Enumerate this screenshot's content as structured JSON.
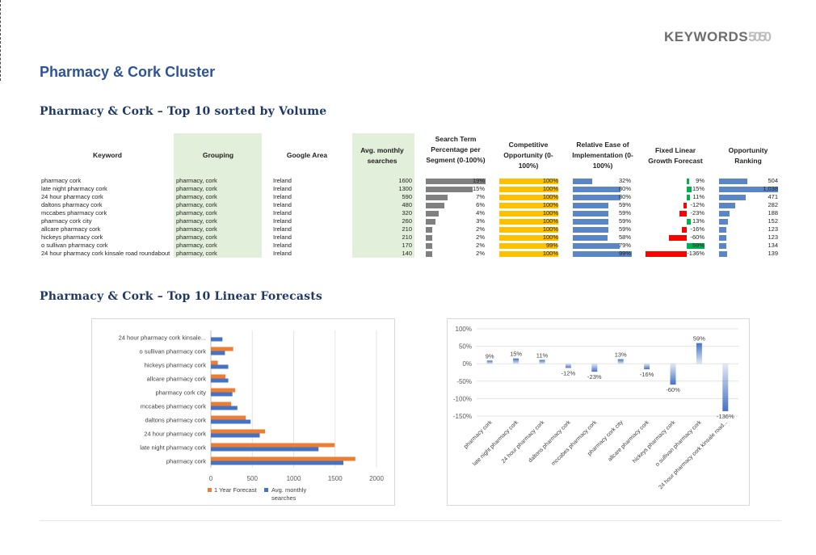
{
  "logo": {
    "text": "KEYWORDS",
    "nums": "5050"
  },
  "title": "Pharmacy & Cork Cluster",
  "section1_title": "Pharmacy & Cork – Top 10 sorted by Volume",
  "section2_title": "Pharmacy & Cork – Top 10 Linear Forecasts",
  "headers": {
    "keyword": "Keyword",
    "grouping": "Grouping",
    "area": "Google Area",
    "volume": "Avg. monthly searches",
    "stp": "Search Term Percentage per Segment (0-100%)",
    "comp": "Competitive Opportunity (0-100%)",
    "ease": "Relative Ease of Implementation (0-100%)",
    "growth": "Fixed Linear Growth Forecast",
    "rank": "Opportunity Ranking"
  },
  "rows": [
    {
      "keyword": "pharmacy cork",
      "grouping": "pharmacy, cork",
      "area": "Ireland",
      "volume": "1600",
      "stp": "19%",
      "stp_v": 19,
      "comp": "100%",
      "comp_v": 100,
      "ease": "32%",
      "ease_v": 32,
      "growth": "9%",
      "growth_v": 9,
      "rank": "504",
      "rank_v": 504
    },
    {
      "keyword": "late night pharmacy cork",
      "grouping": "pharmacy, cork",
      "area": "Ireland",
      "volume": "1300",
      "stp": "15%",
      "stp_v": 15,
      "comp": "100%",
      "comp_v": 100,
      "ease": "80%",
      "ease_v": 80,
      "growth": "15%",
      "growth_v": 15,
      "rank": "1,038",
      "rank_v": 1038
    },
    {
      "keyword": "24 hour pharmacy cork",
      "grouping": "pharmacy, cork",
      "area": "Ireland",
      "volume": "590",
      "stp": "7%",
      "stp_v": 7,
      "comp": "100%",
      "comp_v": 100,
      "ease": "80%",
      "ease_v": 80,
      "growth": "11%",
      "growth_v": 11,
      "rank": "471",
      "rank_v": 471
    },
    {
      "keyword": "daltons pharmacy cork",
      "grouping": "pharmacy, cork",
      "area": "Ireland",
      "volume": "480",
      "stp": "6%",
      "stp_v": 6,
      "comp": "100%",
      "comp_v": 100,
      "ease": "59%",
      "ease_v": 59,
      "growth": "-12%",
      "growth_v": -12,
      "rank": "282",
      "rank_v": 282
    },
    {
      "keyword": "mccabes pharmacy cork",
      "grouping": "pharmacy, cork",
      "area": "Ireland",
      "volume": "320",
      "stp": "4%",
      "stp_v": 4,
      "comp": "100%",
      "comp_v": 100,
      "ease": "59%",
      "ease_v": 59,
      "growth": "-23%",
      "growth_v": -23,
      "rank": "188",
      "rank_v": 188
    },
    {
      "keyword": "pharmacy cork city",
      "grouping": "pharmacy, cork",
      "area": "Ireland",
      "volume": "260",
      "stp": "3%",
      "stp_v": 3,
      "comp": "100%",
      "comp_v": 100,
      "ease": "59%",
      "ease_v": 59,
      "growth": "13%",
      "growth_v": 13,
      "rank": "152",
      "rank_v": 152
    },
    {
      "keyword": "allcare pharmacy cork",
      "grouping": "pharmacy, cork",
      "area": "Ireland",
      "volume": "210",
      "stp": "2%",
      "stp_v": 2,
      "comp": "100%",
      "comp_v": 100,
      "ease": "59%",
      "ease_v": 59,
      "growth": "-16%",
      "growth_v": -16,
      "rank": "123",
      "rank_v": 123
    },
    {
      "keyword": "hickeys pharmacy cork",
      "grouping": "pharmacy, cork",
      "area": "Ireland",
      "volume": "210",
      "stp": "2%",
      "stp_v": 2,
      "comp": "100%",
      "comp_v": 100,
      "ease": "58%",
      "ease_v": 58,
      "growth": "-60%",
      "growth_v": -60,
      "rank": "123",
      "rank_v": 123
    },
    {
      "keyword": "o sullivan pharmacy cork",
      "grouping": "pharmacy, cork",
      "area": "Ireland",
      "volume": "170",
      "stp": "2%",
      "stp_v": 2,
      "comp": "99%",
      "comp_v": 99,
      "ease": "79%",
      "ease_v": 79,
      "growth": "59%",
      "growth_v": 59,
      "rank": "134",
      "rank_v": 134
    },
    {
      "keyword": "24 hour pharmacy cork kinsale road roundabout",
      "grouping": "pharmacy, cork",
      "area": "Ireland",
      "volume": "140",
      "stp": "2%",
      "stp_v": 2,
      "comp": "100%",
      "comp_v": 100,
      "ease": "99%",
      "ease_v": 99,
      "growth": "-136%",
      "growth_v": -136,
      "rank": "139",
      "rank_v": 139
    }
  ],
  "colors": {
    "grey_bar": "#808080",
    "yellow_bar": "#ffc000",
    "blue_bar": "#5b86c5",
    "green_growth": "#00b050",
    "red_growth": "#ff0000",
    "orange": "#ed7d31",
    "blue": "#4472c4",
    "green_bg": "#e2efda"
  },
  "chart_data": [
    {
      "type": "bar",
      "orientation": "horizontal",
      "categories": [
        "pharmacy cork",
        "late night pharmacy cork",
        "24 hour pharmacy cork",
        "daltons pharmacy cork",
        "mccabes pharmacy cork",
        "pharmacy cork city",
        "allcare pharmacy cork",
        "hickeys pharmacy cork",
        "o sullivan pharmacy cork",
        "24 hour pharmacy cork kinsale..."
      ],
      "series": [
        {
          "name": "1 Year Forecast",
          "values": [
            1744,
            1495,
            655,
            422,
            246,
            294,
            176,
            84,
            270,
            0
          ]
        },
        {
          "name": "Avg. monthly searches",
          "values": [
            1600,
            1300,
            590,
            480,
            320,
            260,
            210,
            210,
            170,
            140
          ]
        }
      ],
      "xlim": [
        0,
        2000
      ],
      "xticks": [
        "0",
        "500",
        "1000",
        "1500",
        "2000"
      ],
      "legend": "bottom"
    },
    {
      "type": "bar",
      "categories": [
        "pharmacy cork",
        "late night pharmacy cork",
        "24 hour pharmacy cork",
        "daltons pharmacy cork",
        "mccabes pharmacy cork",
        "pharmacy cork city",
        "allcare pharmacy cork",
        "hickeys pharmacy cork",
        "o sullivan pharmacy cork",
        "24 hour pharmacy cork kinsale road..."
      ],
      "values": [
        9,
        15,
        11,
        -12,
        -23,
        13,
        -16,
        -60,
        59,
        -136
      ],
      "data_labels": [
        "9%",
        "15%",
        "11%",
        "-12%",
        "-23%",
        "13%",
        "-16%",
        "-60%",
        "59%",
        "-136%"
      ],
      "ylim": [
        -150,
        100
      ],
      "yticks": [
        "100%",
        "50%",
        "0%",
        "-50%",
        "-100%",
        "-150%"
      ],
      "grid": true
    }
  ]
}
